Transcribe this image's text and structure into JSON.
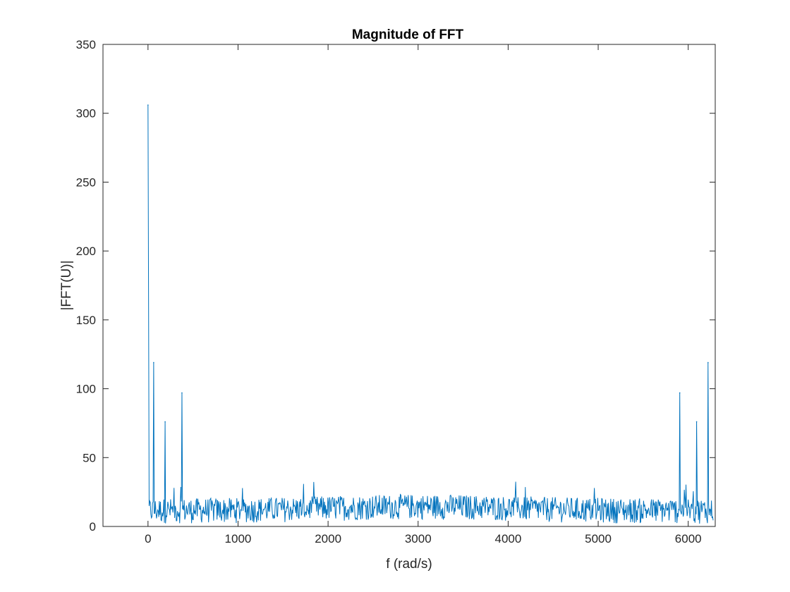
{
  "chart_data": {
    "type": "line",
    "title": "Magnitude of FFT",
    "xlabel": "f (rad/s)",
    "ylabel": "|FFT(U)|",
    "xlim": [
      -500,
      6300
    ],
    "ylim": [
      0,
      350
    ],
    "xticks": [
      0,
      1000,
      2000,
      3000,
      4000,
      5000,
      6000
    ],
    "yticks": [
      0,
      50,
      100,
      150,
      200,
      250,
      300,
      350
    ],
    "grid": false,
    "series_color": "#0072BD",
    "series": [
      {
        "peaks": [
          {
            "x": 0,
            "y": 306
          },
          {
            "x": 63,
            "y": 119
          },
          {
            "x": 190,
            "y": 76
          },
          {
            "x": 377,
            "y": 97
          },
          {
            "x": 5906,
            "y": 97
          },
          {
            "x": 6093,
            "y": 76
          },
          {
            "x": 6220,
            "y": 119
          }
        ],
        "noise_floor": {
          "x_range": [
            0,
            6283
          ],
          "typical_range": [
            2,
            25
          ],
          "max": 31
        }
      }
    ]
  }
}
